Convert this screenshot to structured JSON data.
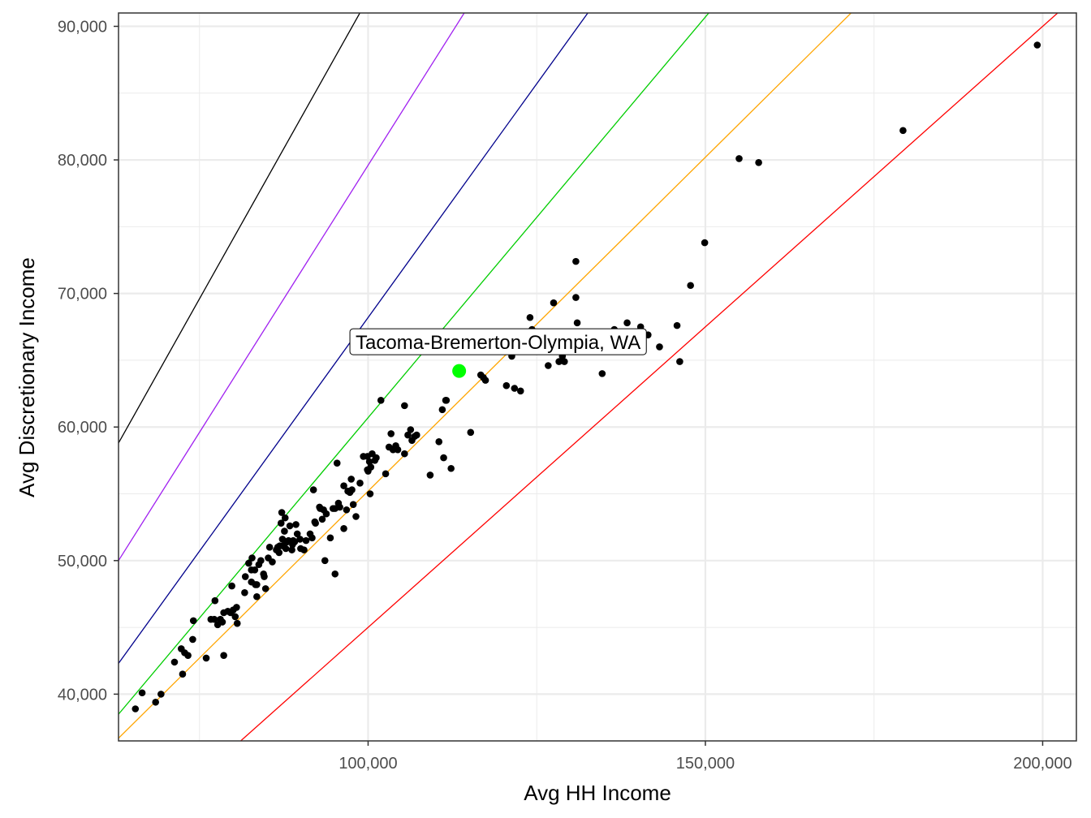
{
  "chart_data": {
    "type": "scatter",
    "title": "",
    "xlabel": "Avg HH Income",
    "ylabel": "Avg Discretionary Income",
    "xlim": [
      63000,
      205000
    ],
    "ylim": [
      36500,
      91000
    ],
    "x_ticks": [
      100000,
      150000,
      200000
    ],
    "x_tick_labels": [
      "100,000",
      "150,000",
      "200,000"
    ],
    "y_ticks": [
      40000,
      50000,
      60000,
      70000,
      80000,
      90000
    ],
    "y_tick_labels": [
      "40,000",
      "50,000",
      "60,000",
      "70,000",
      "80,000",
      "90,000"
    ],
    "grid": true,
    "legend": "none",
    "colors": {
      "background": "#ffffff",
      "grid": "#ebebeb",
      "panel_border": "#333333",
      "points": "#000000",
      "highlight": "#00ff00"
    },
    "reference_lines": [
      {
        "color": "#000000",
        "slope": 0.9,
        "intercept": 2100
      },
      {
        "color": "#a020f0",
        "slope": 0.8,
        "intercept": -400
      },
      {
        "color": "#00008b",
        "slope": 0.7,
        "intercept": -1800
      },
      {
        "color": "#00cd00",
        "slope": 0.6,
        "intercept": 700
      },
      {
        "color": "#ffa500",
        "slope": 0.5,
        "intercept": 5200
      },
      {
        "color": "#ff0000",
        "slope": 0.45,
        "intercept": 0
      }
    ],
    "points": [
      [
        65500,
        38900
      ],
      [
        66500,
        40100
      ],
      [
        68500,
        39400
      ],
      [
        69300,
        40000
      ],
      [
        71300,
        42400
      ],
      [
        72300,
        43400
      ],
      [
        72800,
        43100
      ],
      [
        73300,
        42900
      ],
      [
        72500,
        41500
      ],
      [
        74000,
        44100
      ],
      [
        74100,
        45500
      ],
      [
        76000,
        42700
      ],
      [
        76700,
        45600
      ],
      [
        77200,
        45600
      ],
      [
        77300,
        47000
      ],
      [
        77700,
        45200
      ],
      [
        78100,
        45600
      ],
      [
        78400,
        45400
      ],
      [
        78600,
        46100
      ],
      [
        78600,
        42900
      ],
      [
        79200,
        46200
      ],
      [
        79600,
        46100
      ],
      [
        80000,
        46300
      ],
      [
        80300,
        45800
      ],
      [
        80500,
        46500
      ],
      [
        80600,
        45300
      ],
      [
        79800,
        48100
      ],
      [
        81700,
        47600
      ],
      [
        81800,
        48800
      ],
      [
        82300,
        49800
      ],
      [
        82700,
        49300
      ],
      [
        82700,
        48400
      ],
      [
        82800,
        50200
      ],
      [
        83200,
        49300
      ],
      [
        83300,
        48200
      ],
      [
        83500,
        47300
      ],
      [
        83500,
        48200
      ],
      [
        83800,
        49700
      ],
      [
        84100,
        50000
      ],
      [
        84500,
        49000
      ],
      [
        84600,
        48800
      ],
      [
        84800,
        47900
      ],
      [
        85200,
        50200
      ],
      [
        85400,
        51000
      ],
      [
        85800,
        49900
      ],
      [
        86400,
        50800
      ],
      [
        86600,
        51000
      ],
      [
        86800,
        50600
      ],
      [
        86900,
        51100
      ],
      [
        87100,
        52800
      ],
      [
        87200,
        53600
      ],
      [
        87300,
        51600
      ],
      [
        87400,
        51100
      ],
      [
        87600,
        52200
      ],
      [
        87700,
        53200
      ],
      [
        87800,
        50900
      ],
      [
        88000,
        51400
      ],
      [
        88200,
        51500
      ],
      [
        88400,
        52600
      ],
      [
        88700,
        50800
      ],
      [
        88800,
        51200
      ],
      [
        88900,
        51500
      ],
      [
        89100,
        51400
      ],
      [
        89300,
        52700
      ],
      [
        89500,
        52000
      ],
      [
        89900,
        51600
      ],
      [
        90000,
        50900
      ],
      [
        90500,
        50800
      ],
      [
        90800,
        51500
      ],
      [
        91400,
        52000
      ],
      [
        91700,
        51700
      ],
      [
        91900,
        55300
      ],
      [
        92100,
        52900
      ],
      [
        92200,
        52800
      ],
      [
        92800,
        54000
      ],
      [
        92900,
        53900
      ],
      [
        93200,
        53100
      ],
      [
        93400,
        53800
      ],
      [
        93600,
        50000
      ],
      [
        93800,
        53500
      ],
      [
        94400,
        51700
      ],
      [
        94800,
        53900
      ],
      [
        95100,
        53900
      ],
      [
        95100,
        49000
      ],
      [
        95400,
        57300
      ],
      [
        95600,
        54300
      ],
      [
        95800,
        54000
      ],
      [
        96400,
        55600
      ],
      [
        96400,
        52400
      ],
      [
        96800,
        53800
      ],
      [
        97000,
        55200
      ],
      [
        97300,
        55100
      ],
      [
        97500,
        56100
      ],
      [
        97600,
        55300
      ],
      [
        97800,
        54200
      ],
      [
        98200,
        53300
      ],
      [
        98800,
        55800
      ],
      [
        99300,
        57800
      ],
      [
        99900,
        57800
      ],
      [
        99900,
        56800
      ],
      [
        100000,
        56700
      ],
      [
        100200,
        57400
      ],
      [
        100300,
        55000
      ],
      [
        100400,
        57000
      ],
      [
        100600,
        58000
      ],
      [
        101000,
        57500
      ],
      [
        101200,
        57700
      ],
      [
        101900,
        62000
      ],
      [
        102600,
        56500
      ],
      [
        103100,
        58500
      ],
      [
        103400,
        59500
      ],
      [
        103700,
        58300
      ],
      [
        104100,
        58600
      ],
      [
        104400,
        58300
      ],
      [
        105400,
        61600
      ],
      [
        105400,
        58000
      ],
      [
        105900,
        59400
      ],
      [
        106300,
        59800
      ],
      [
        106500,
        59000
      ],
      [
        106900,
        59300
      ],
      [
        107200,
        59400
      ],
      [
        109200,
        56400
      ],
      [
        110500,
        58900
      ],
      [
        111000,
        61300
      ],
      [
        111200,
        57700
      ],
      [
        111500,
        62000
      ],
      [
        111600,
        62000
      ],
      [
        112300,
        56900
      ],
      [
        115200,
        59600
      ],
      [
        116700,
        63900
      ],
      [
        117100,
        63700
      ],
      [
        117400,
        63500
      ],
      [
        120500,
        63100
      ],
      [
        121300,
        65300
      ],
      [
        121700,
        62900
      ],
      [
        122600,
        62700
      ],
      [
        123600,
        67000
      ],
      [
        124000,
        68200
      ],
      [
        124300,
        67300
      ],
      [
        124400,
        66700
      ],
      [
        126700,
        64600
      ],
      [
        127500,
        69300
      ],
      [
        128300,
        64900
      ],
      [
        128800,
        65300
      ],
      [
        129100,
        64900
      ],
      [
        130800,
        69700
      ],
      [
        130800,
        72400
      ],
      [
        131000,
        67800
      ],
      [
        134700,
        64000
      ],
      [
        136500,
        67300
      ],
      [
        138400,
        67800
      ],
      [
        139200,
        66400
      ],
      [
        139700,
        66700
      ],
      [
        140400,
        67500
      ],
      [
        141500,
        66900
      ],
      [
        143200,
        66000
      ],
      [
        145800,
        67600
      ],
      [
        146200,
        64900
      ],
      [
        147800,
        70600
      ],
      [
        149900,
        73800
      ],
      [
        155000,
        80100
      ],
      [
        157900,
        79800
      ],
      [
        179300,
        82200
      ],
      [
        199200,
        88600
      ]
    ],
    "highlight": {
      "x": 113500,
      "y": 64200,
      "label": "Tacoma-Bremerton-Olympia, WA"
    }
  }
}
